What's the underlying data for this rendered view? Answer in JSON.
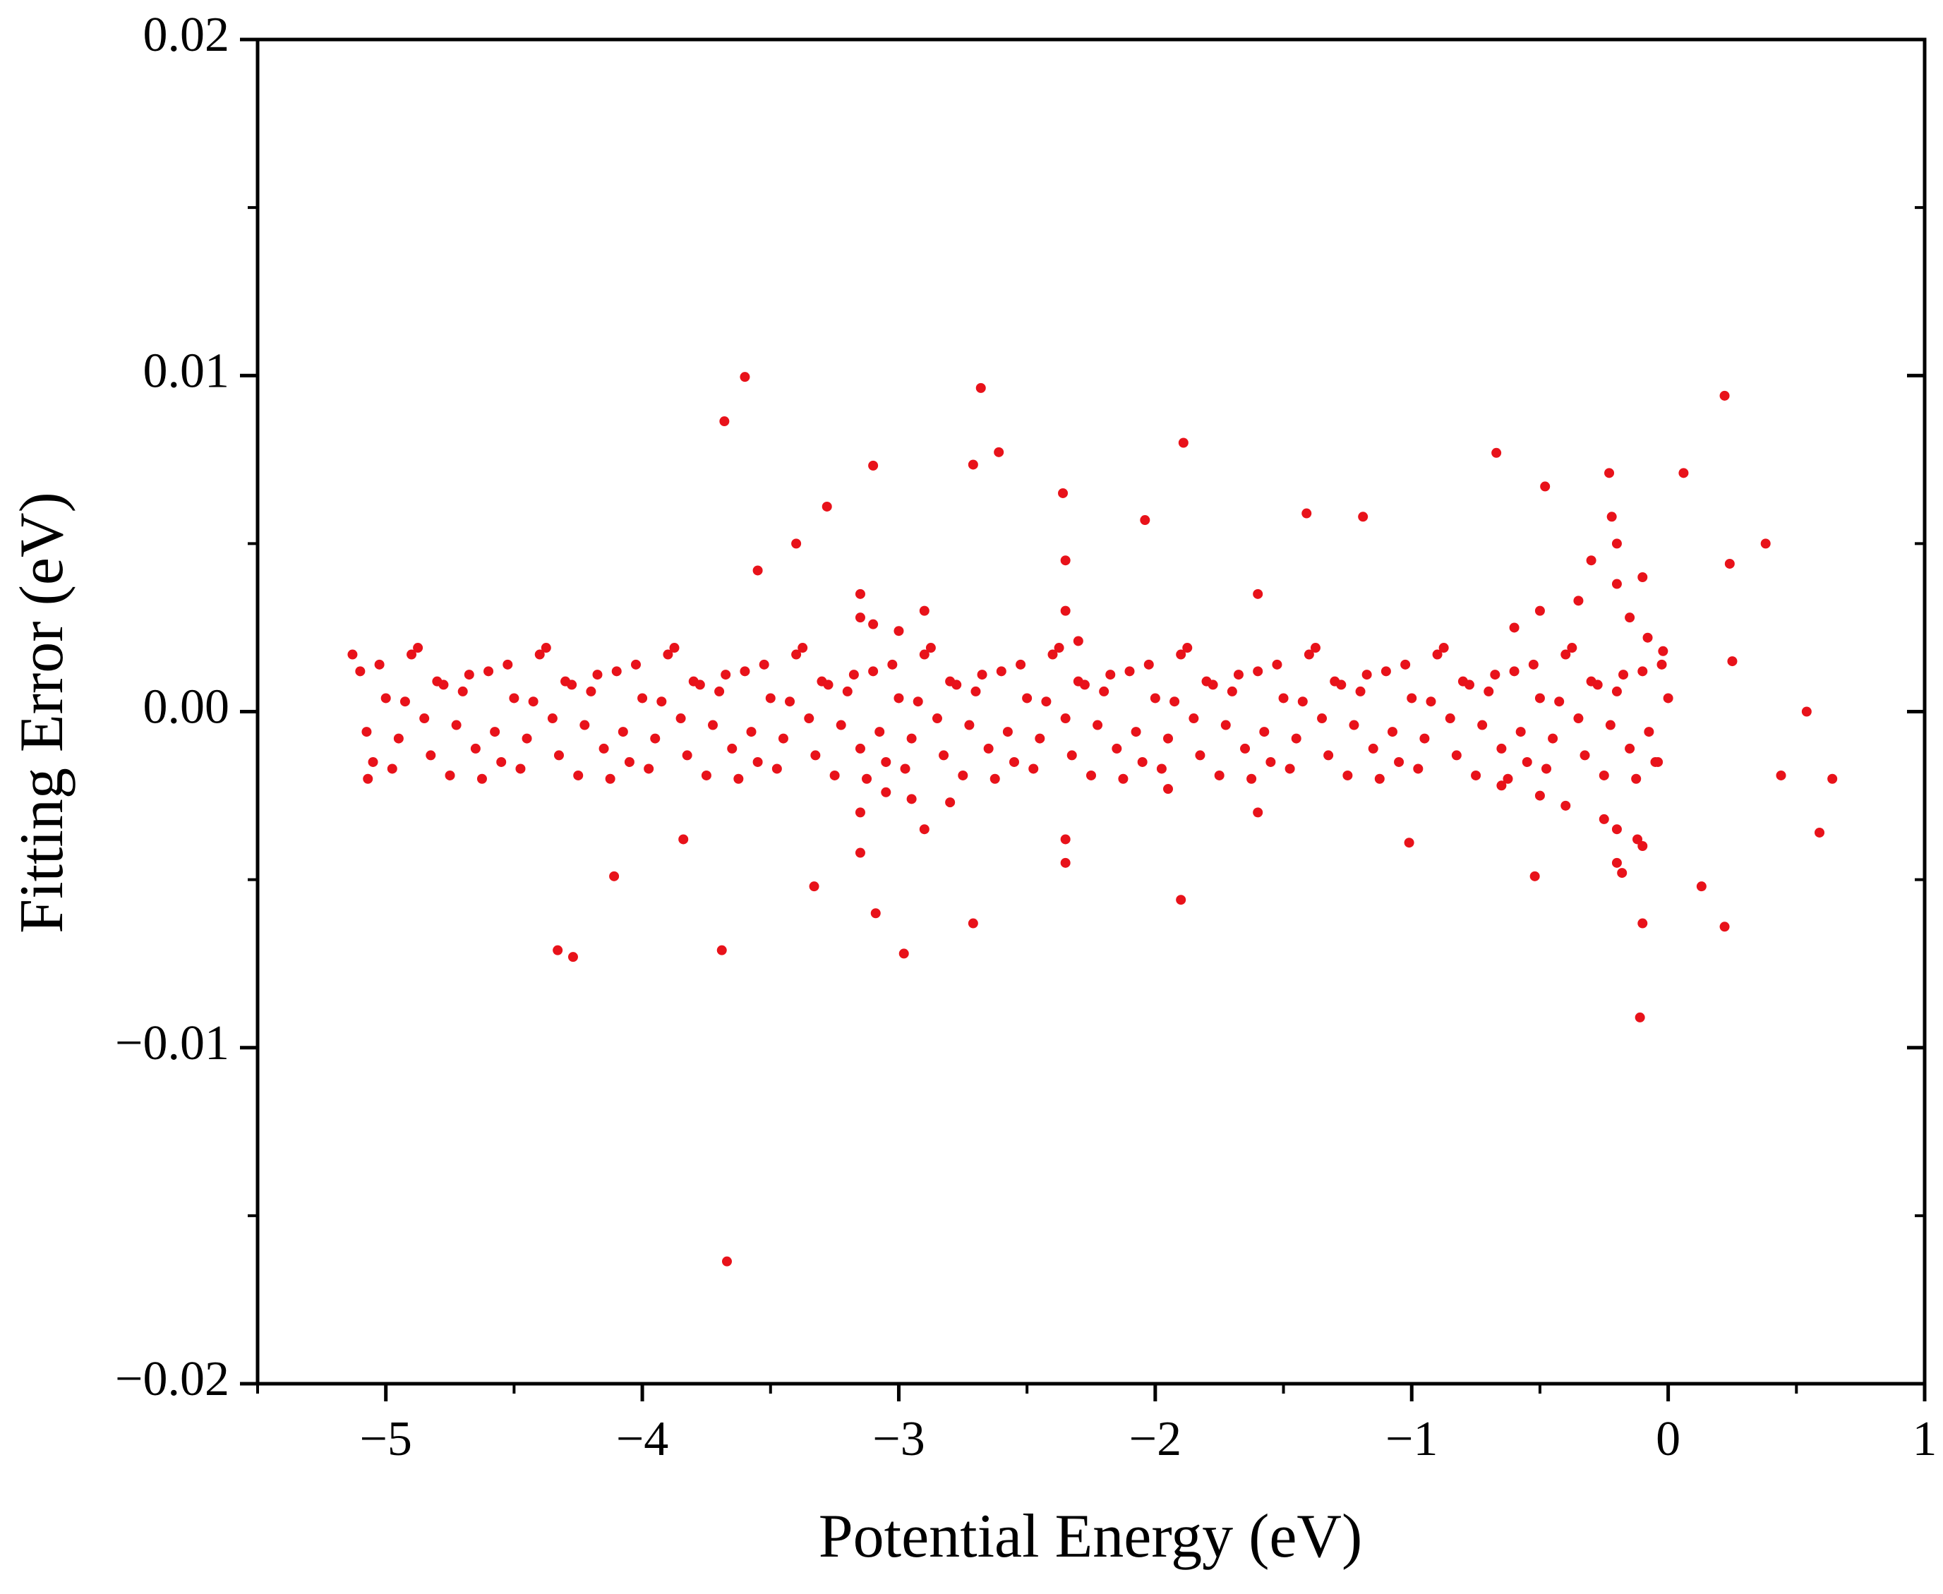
{
  "chart_data": {
    "type": "scatter",
    "xlabel": "Potential Energy (eV)",
    "ylabel": "Fitting Error (eV)",
    "color": "#e8121a",
    "xlim": [
      -5.5,
      1
    ],
    "ylim": [
      -0.02,
      0.02
    ],
    "xticks": [
      {
        "value": -5,
        "label": "−5"
      },
      {
        "value": -4,
        "label": "−4"
      },
      {
        "value": -3,
        "label": "−3"
      },
      {
        "value": -2,
        "label": "−2"
      },
      {
        "value": -1,
        "label": "−1"
      },
      0,
      1
    ],
    "yticks": [
      {
        "value": -0.02,
        "label": "−0.02"
      },
      {
        "value": -0.01,
        "label": "−0.01"
      },
      {
        "value": 0,
        "label": "0.00"
      },
      0.01,
      0.02
    ],
    "xminorticks": [
      -5.5,
      -4.5,
      -3.5,
      -2.5,
      -1.5,
      -0.5,
      0.5
    ],
    "yminorticks": [
      -0.015,
      -0.005,
      0.005,
      0.015
    ],
    "x": [
      -3.68,
      -3.6,
      -2.68,
      -2.61,
      -2.71,
      -3.1,
      -1.89,
      -0.67,
      0.22,
      0.06,
      0.38,
      0.24,
      0.25,
      0.54,
      0.44,
      0.64,
      0.59,
      0.22,
      0.13,
      -0.11,
      -0.1,
      -3.67,
      -4.33,
      -4.27,
      -3.69,
      -2.98,
      -3.09,
      -4.11,
      -3.84,
      -3.33,
      -2.71,
      -1.9,
      -0.52,
      -1.01,
      -3.28,
      -3.4,
      -1.41,
      -1.19,
      -0.23,
      -0.48,
      -2.04,
      -2.36,
      -3.55,
      -5.13,
      -5.07,
      -5.1,
      -5.05,
      -5,
      -4.95,
      -4.9,
      -4.85,
      -4.8,
      -4.75,
      -4.7,
      -4.65,
      -4.6,
      -4.55,
      -4.5,
      -4.45,
      -4.4,
      -4.35,
      -4.3,
      -4.25,
      -4.2,
      -4.15,
      -4.1,
      -4.05,
      -4,
      -3.95,
      -3.9,
      -3.85,
      -3.8,
      -3.75,
      -3.7,
      -3.65,
      -3.6,
      -3.55,
      -3.5,
      -3.45,
      -3.4,
      -3.35,
      -3.3,
      -3.25,
      -3.2,
      -3.15,
      -3.1,
      -3.05,
      -3,
      -2.95,
      -2.9,
      -2.85,
      -2.8,
      -2.75,
      -2.7,
      -2.65,
      -2.6,
      -2.55,
      -2.5,
      -2.45,
      -2.4,
      -2.35,
      -2.3,
      -2.25,
      -2.2,
      -2.15,
      -2.1,
      -2.05,
      -2,
      -1.95,
      -1.9,
      -1.85,
      -1.8,
      -1.75,
      -1.7,
      -1.65,
      -1.6,
      -1.55,
      -1.5,
      -1.45,
      -1.4,
      -1.35,
      -1.3,
      -1.25,
      -1.2,
      -1.15,
      -1.1,
      -1.05,
      -1,
      -0.95,
      -0.9,
      -0.85,
      -0.8,
      -0.75,
      -0.7,
      -0.65,
      -0.6,
      -0.55,
      -0.5,
      -0.45,
      -0.4,
      -0.35,
      -0.3,
      -0.25,
      -0.2,
      -0.15,
      -0.1,
      -0.05,
      0,
      -5.075,
      -5.025,
      -4.975,
      -4.925,
      -4.875,
      -4.825,
      -4.775,
      -4.725,
      -4.675,
      -4.625,
      -4.575,
      -4.525,
      -4.475,
      -4.425,
      -4.375,
      -4.325,
      -4.275,
      -4.225,
      -4.175,
      -4.125,
      -4.075,
      -4.025,
      -3.975,
      -3.925,
      -3.875,
      -3.825,
      -3.775,
      -3.725,
      -3.675,
      -3.625,
      -3.575,
      -3.525,
      -3.475,
      -3.425,
      -3.375,
      -3.325,
      -3.275,
      -3.225,
      -3.175,
      -3.125,
      -3.075,
      -3.025,
      -2.975,
      -2.925,
      -2.875,
      -2.825,
      -2.775,
      -2.725,
      -2.675,
      -2.625,
      -2.575,
      -2.525,
      -2.475,
      -2.425,
      -2.375,
      -2.325,
      -2.275,
      -2.225,
      -2.175,
      -2.125,
      -2.075,
      -2.025,
      -1.975,
      -1.925,
      -1.875,
      -1.825,
      -1.775,
      -1.725,
      -1.675,
      -1.625,
      -1.575,
      -1.525,
      -1.475,
      -1.425,
      -1.375,
      -1.325,
      -1.275,
      -1.225,
      -1.175,
      -1.125,
      -1.075,
      -1.025,
      -0.975,
      -0.925,
      -0.875,
      -0.825,
      -0.775,
      -0.725,
      -0.675,
      -0.625,
      -0.575,
      -0.525,
      -0.475,
      -0.425,
      -0.375,
      -0.325,
      -0.275,
      -0.225,
      -0.175,
      -0.125,
      -0.075,
      -0.025,
      -3.15,
      -3.15,
      -3.15,
      -3.15,
      -2.35,
      -2.35,
      -2.35,
      -2.35,
      -0.2,
      -0.2,
      -0.2,
      -0.2,
      -0.22,
      -0.18,
      -0.1,
      -0.1,
      -0.5,
      -0.5,
      -1.6,
      -1.6,
      -2.9,
      -2.9,
      -0.15,
      -0.25,
      -3.0,
      -2.95,
      -0.35,
      -0.4,
      -0.6,
      -0.65,
      -0.3,
      -0.12,
      -0.08,
      -0.02,
      -0.04,
      -3.1,
      -3.05,
      -2.8,
      -2.3,
      -1.95
    ],
    "values": [
      0.00864,
      0.00996,
      0.00963,
      0.00772,
      0.00735,
      0.00732,
      0.008,
      0.0077,
      0.0094,
      0.0071,
      0.005,
      0.0044,
      0.0015,
      0,
      -0.0019,
      -0.002,
      -0.0036,
      -0.0064,
      -0.0052,
      -0.0091,
      -0.0063,
      -0.01636,
      -0.0071,
      -0.0073,
      -0.0071,
      -0.0072,
      -0.006,
      -0.0049,
      -0.0038,
      -0.0052,
      -0.0063,
      -0.0056,
      -0.0049,
      -0.0039,
      0.0061,
      0.005,
      0.0059,
      0.0058,
      0.0071,
      0.0067,
      0.0057,
      0.0065,
      0.0042,
      0.0017,
      -0.002,
      0.0012,
      -0.0015,
      0.0004,
      -0.0008,
      0.0017,
      -0.0002,
      0.0009,
      -0.0019,
      0.0006,
      -0.0011,
      0.0012,
      -0.0015,
      0.0004,
      -0.0008,
      0.0017,
      -0.0002,
      0.0009,
      -0.0019,
      0.0006,
      -0.0011,
      0.0012,
      -0.0015,
      0.0004,
      -0.0008,
      0.0017,
      -0.0002,
      0.0009,
      -0.0019,
      0.0006,
      -0.0011,
      0.0012,
      -0.0015,
      0.0004,
      -0.0008,
      0.0017,
      -0.0002,
      0.0009,
      -0.0019,
      0.0006,
      -0.0011,
      0.0012,
      -0.0015,
      0.0004,
      -0.0008,
      0.0017,
      -0.0002,
      0.0009,
      -0.0019,
      0.0006,
      -0.0011,
      0.0012,
      -0.0015,
      0.0004,
      -0.0008,
      0.0017,
      -0.0002,
      0.0009,
      -0.0019,
      0.0006,
      -0.0011,
      0.0012,
      -0.0015,
      0.0004,
      -0.0008,
      0.0017,
      -0.0002,
      0.0009,
      -0.0019,
      0.0006,
      -0.0011,
      0.0012,
      -0.0015,
      0.0004,
      -0.0008,
      0.0017,
      -0.0002,
      0.0009,
      -0.0019,
      0.0006,
      -0.0011,
      0.0012,
      -0.0015,
      0.0004,
      -0.0008,
      0.0017,
      -0.0002,
      0.0009,
      -0.0019,
      0.0006,
      -0.0011,
      0.0012,
      -0.0015,
      0.0004,
      -0.0008,
      0.0017,
      -0.0002,
      0.0009,
      -0.0019,
      0.0006,
      -0.0011,
      0.0012,
      -0.0015,
      0.0004,
      -0.0006,
      0.0014,
      -0.0017,
      0.0003,
      0.0019,
      -0.0013,
      0.0008,
      -0.0004,
      0.0011,
      -0.002,
      -0.0006,
      0.0014,
      -0.0017,
      0.0003,
      0.0019,
      -0.0013,
      0.0008,
      -0.0004,
      0.0011,
      -0.002,
      -0.0006,
      0.0014,
      -0.0017,
      0.0003,
      0.0019,
      -0.0013,
      0.0008,
      -0.0004,
      0.0011,
      -0.002,
      -0.0006,
      0.0014,
      -0.0017,
      0.0003,
      0.0019,
      -0.0013,
      0.0008,
      -0.0004,
      0.0011,
      -0.002,
      -0.0006,
      0.0014,
      -0.0017,
      0.0003,
      0.0019,
      -0.0013,
      0.0008,
      -0.0004,
      0.0011,
      -0.002,
      -0.0006,
      0.0014,
      -0.0017,
      0.0003,
      0.0019,
      -0.0013,
      0.0008,
      -0.0004,
      0.0011,
      -0.002,
      -0.0006,
      0.0014,
      -0.0017,
      0.0003,
      0.0019,
      -0.0013,
      0.0008,
      -0.0004,
      0.0011,
      -0.002,
      -0.0006,
      0.0014,
      -0.0017,
      0.0003,
      0.0019,
      -0.0013,
      0.0008,
      -0.0004,
      0.0011,
      -0.002,
      -0.0006,
      0.0014,
      -0.0017,
      0.0003,
      0.0019,
      -0.0013,
      0.0008,
      -0.0004,
      0.0011,
      -0.002,
      -0.0006,
      0.0014,
      -0.0017,
      0.0003,
      0.0019,
      -0.0013,
      0.0008,
      -0.0004,
      0.0011,
      -0.002,
      -0.0006,
      0.0014,
      0.0035,
      -0.0042,
      0.0028,
      -0.003,
      0.0045,
      -0.0045,
      0.003,
      -0.0038,
      0.005,
      -0.0045,
      0.0038,
      -0.0035,
      0.0058,
      -0.0048,
      0.004,
      -0.004,
      0.003,
      -0.0025,
      0.0035,
      -0.003,
      0.003,
      -0.0035,
      0.0028,
      -0.0032,
      0.0024,
      -0.0026,
      0.0033,
      -0.0028,
      0.0025,
      -0.0022,
      0.0045,
      -0.0038,
      0.0022,
      0.0018,
      -0.0015,
      0.0026,
      -0.0024,
      -0.0027,
      0.0021,
      -0.0023
    ]
  }
}
